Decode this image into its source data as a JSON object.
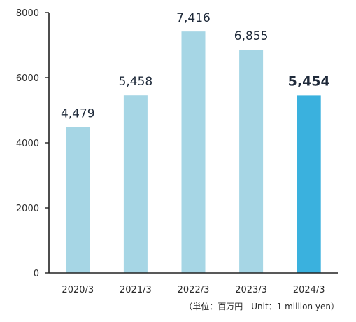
{
  "chart_data": {
    "type": "bar",
    "categories": [
      "2020/3",
      "2021/3",
      "2022/3",
      "2023/3",
      "2024/3"
    ],
    "values": [
      4479,
      5458,
      7416,
      6855,
      5454
    ],
    "value_labels": [
      "4,479",
      "5,458",
      "7,416",
      "6,855",
      "5,454"
    ],
    "highlight_index": 4,
    "ylim": [
      0,
      8000
    ],
    "yticks": [
      0,
      2000,
      4000,
      6000,
      8000
    ],
    "ytick_labels": [
      "0",
      "2000",
      "4000",
      "6000",
      "8000"
    ],
    "unit_note": "（単位：百万円　Unit：1 million yen）",
    "grid": false,
    "colors": {
      "bar": "#a6d6e5",
      "bar_highlight": "#3ab1de",
      "axis": "#222222"
    }
  }
}
